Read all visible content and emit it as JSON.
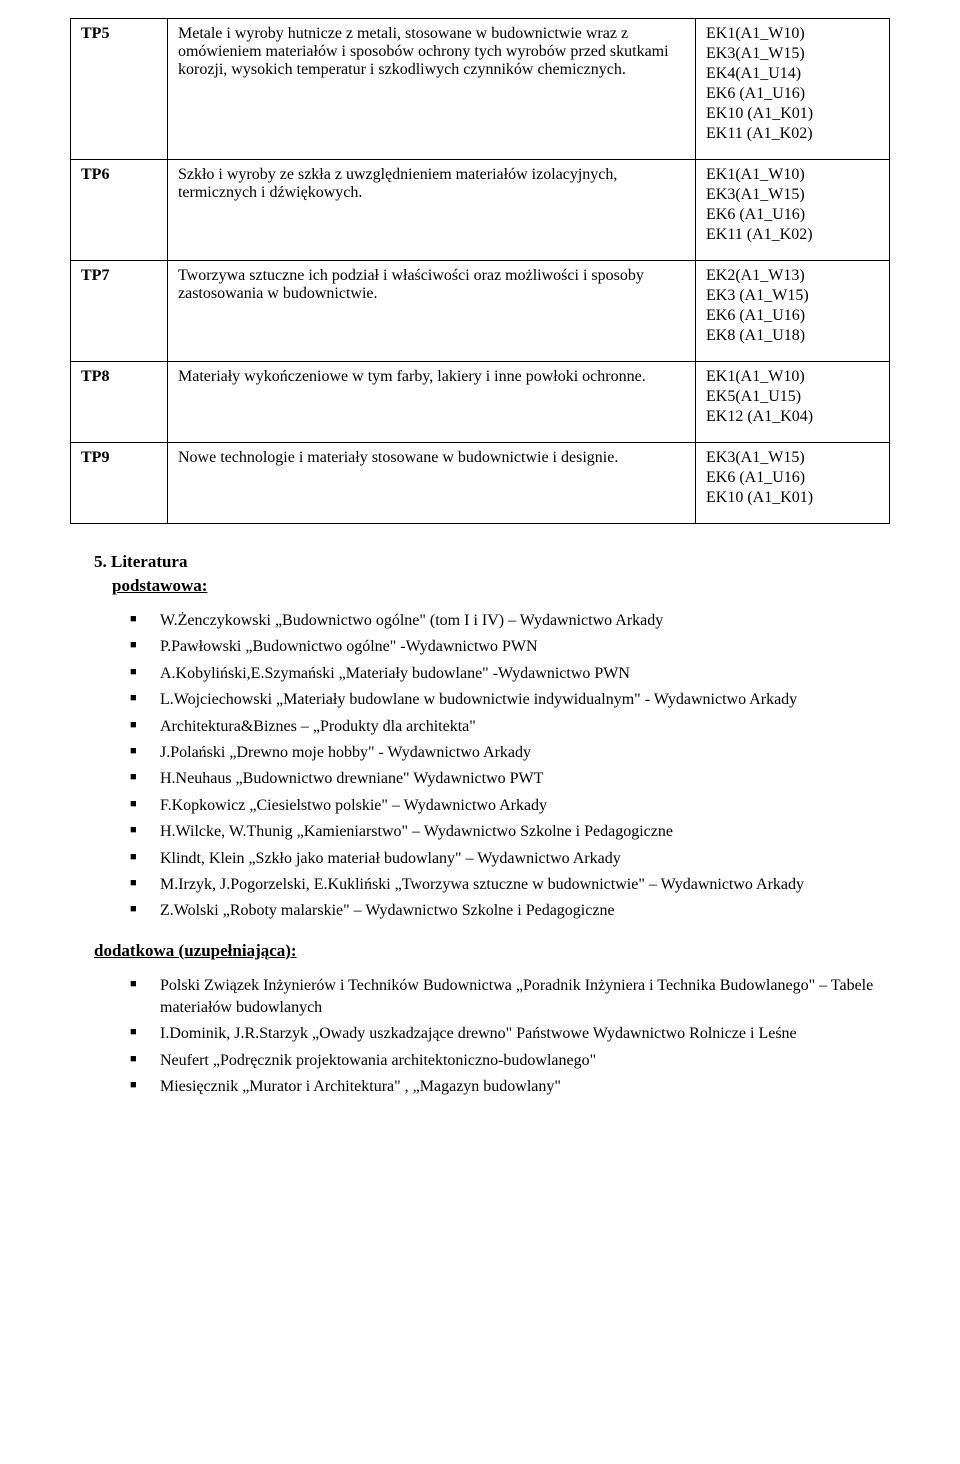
{
  "rows": [
    {
      "id": "TP5",
      "desc": "Metale i wyroby hutnicze z metali, stosowane w budownictwie wraz z omówieniem materiałów i sposobów ochrony tych wyrobów przed skutkami korozji, wysokich temperatur i szkodliwych czynników chemicznych.",
      "codes": [
        "EK1(A1_W10)",
        "EK3(A1_W15)",
        "EK4(A1_U14)",
        "EK6 (A1_U16)",
        "EK10 (A1_K01)",
        "EK11 (A1_K02)"
      ]
    },
    {
      "id": "TP6",
      "desc": "Szkło i wyroby ze szkła z uwzględnieniem materiałów izolacyjnych, termicznych i dźwiękowych.",
      "codes": [
        "EK1(A1_W10)",
        "EK3(A1_W15)",
        "EK6 (A1_U16)",
        "EK11 (A1_K02)"
      ]
    },
    {
      "id": "TP7",
      "desc": "Tworzywa sztuczne ich podział i właściwości oraz możliwości i sposoby zastosowania w budownictwie.",
      "codes": [
        "EK2(A1_W13)",
        "EK3 (A1_W15)",
        "EK6 (A1_U16)",
        "EK8 (A1_U18)"
      ]
    },
    {
      "id": "TP8",
      "desc": "Materiały wykończeniowe w tym farby, lakiery i inne powłoki ochronne.",
      "codes": [
        "EK1(A1_W10)",
        "EK5(A1_U15)",
        "EK12 (A1_K04)"
      ]
    },
    {
      "id": "TP9",
      "desc": "Nowe technologie i materiały stosowane w budownictwie i designie.",
      "codes": [
        "EK3(A1_W15)",
        "EK6 (A1_U16)",
        "EK10 (A1_K01)"
      ]
    }
  ],
  "section_title": "5. Literatura",
  "sub_primary": "podstawowa:",
  "sub_secondary": "dodatkowa (uzupełniająca):",
  "primary": [
    "W.Żenczykowski  „Budownictwo ogólne\" (tom I i IV) – Wydawnictwo Arkady",
    "P.Pawłowski  „Budownictwo ogólne\" -Wydawnictwo PWN",
    "A.Kobyliński,E.Szymański „Materiały budowlane\" -Wydawnictwo PWN",
    "L.Wojciechowski „Materiały budowlane w budownictwie indywidualnym\" - Wydawnictwo Arkady",
    "Architektura&Biznes – „Produkty dla architekta\"",
    "J.Polański  „Drewno moje hobby\" - Wydawnictwo Arkady",
    "H.Neuhaus  „Budownictwo drewniane\" Wydawnictwo PWT",
    "F.Kopkowicz „Ciesielstwo polskie\" – Wydawnictwo Arkady",
    "H.Wilcke, W.Thunig „Kamieniarstwo\" – Wydawnictwo Szkolne i Pedagogiczne",
    "Klindt, Klein „Szkło jako materiał budowlany\" – Wydawnictwo Arkady",
    "M.Irzyk, J.Pogorzelski, E.Kukliński „Tworzywa sztuczne w budownictwie\" – Wydawnictwo Arkady",
    "Z.Wolski „Roboty malarskie\" – Wydawnictwo Szkolne i Pedagogiczne"
  ],
  "secondary": [
    "Polski Związek Inżynierów i Techników Budownictwa „Poradnik Inżyniera i Technika Budowlanego\" – Tabele materiałów budowlanych",
    "I.Dominik, J.R.Starzyk „Owady uszkadzające drewno\" Państwowe Wydawnictwo Rolnicze i Leśne",
    "Neufert „Podręcznik projektowania architektoniczno-budowlanego\"",
    "Miesięcznik „Murator i Architektura\" , „Magazyn budowlany\""
  ]
}
